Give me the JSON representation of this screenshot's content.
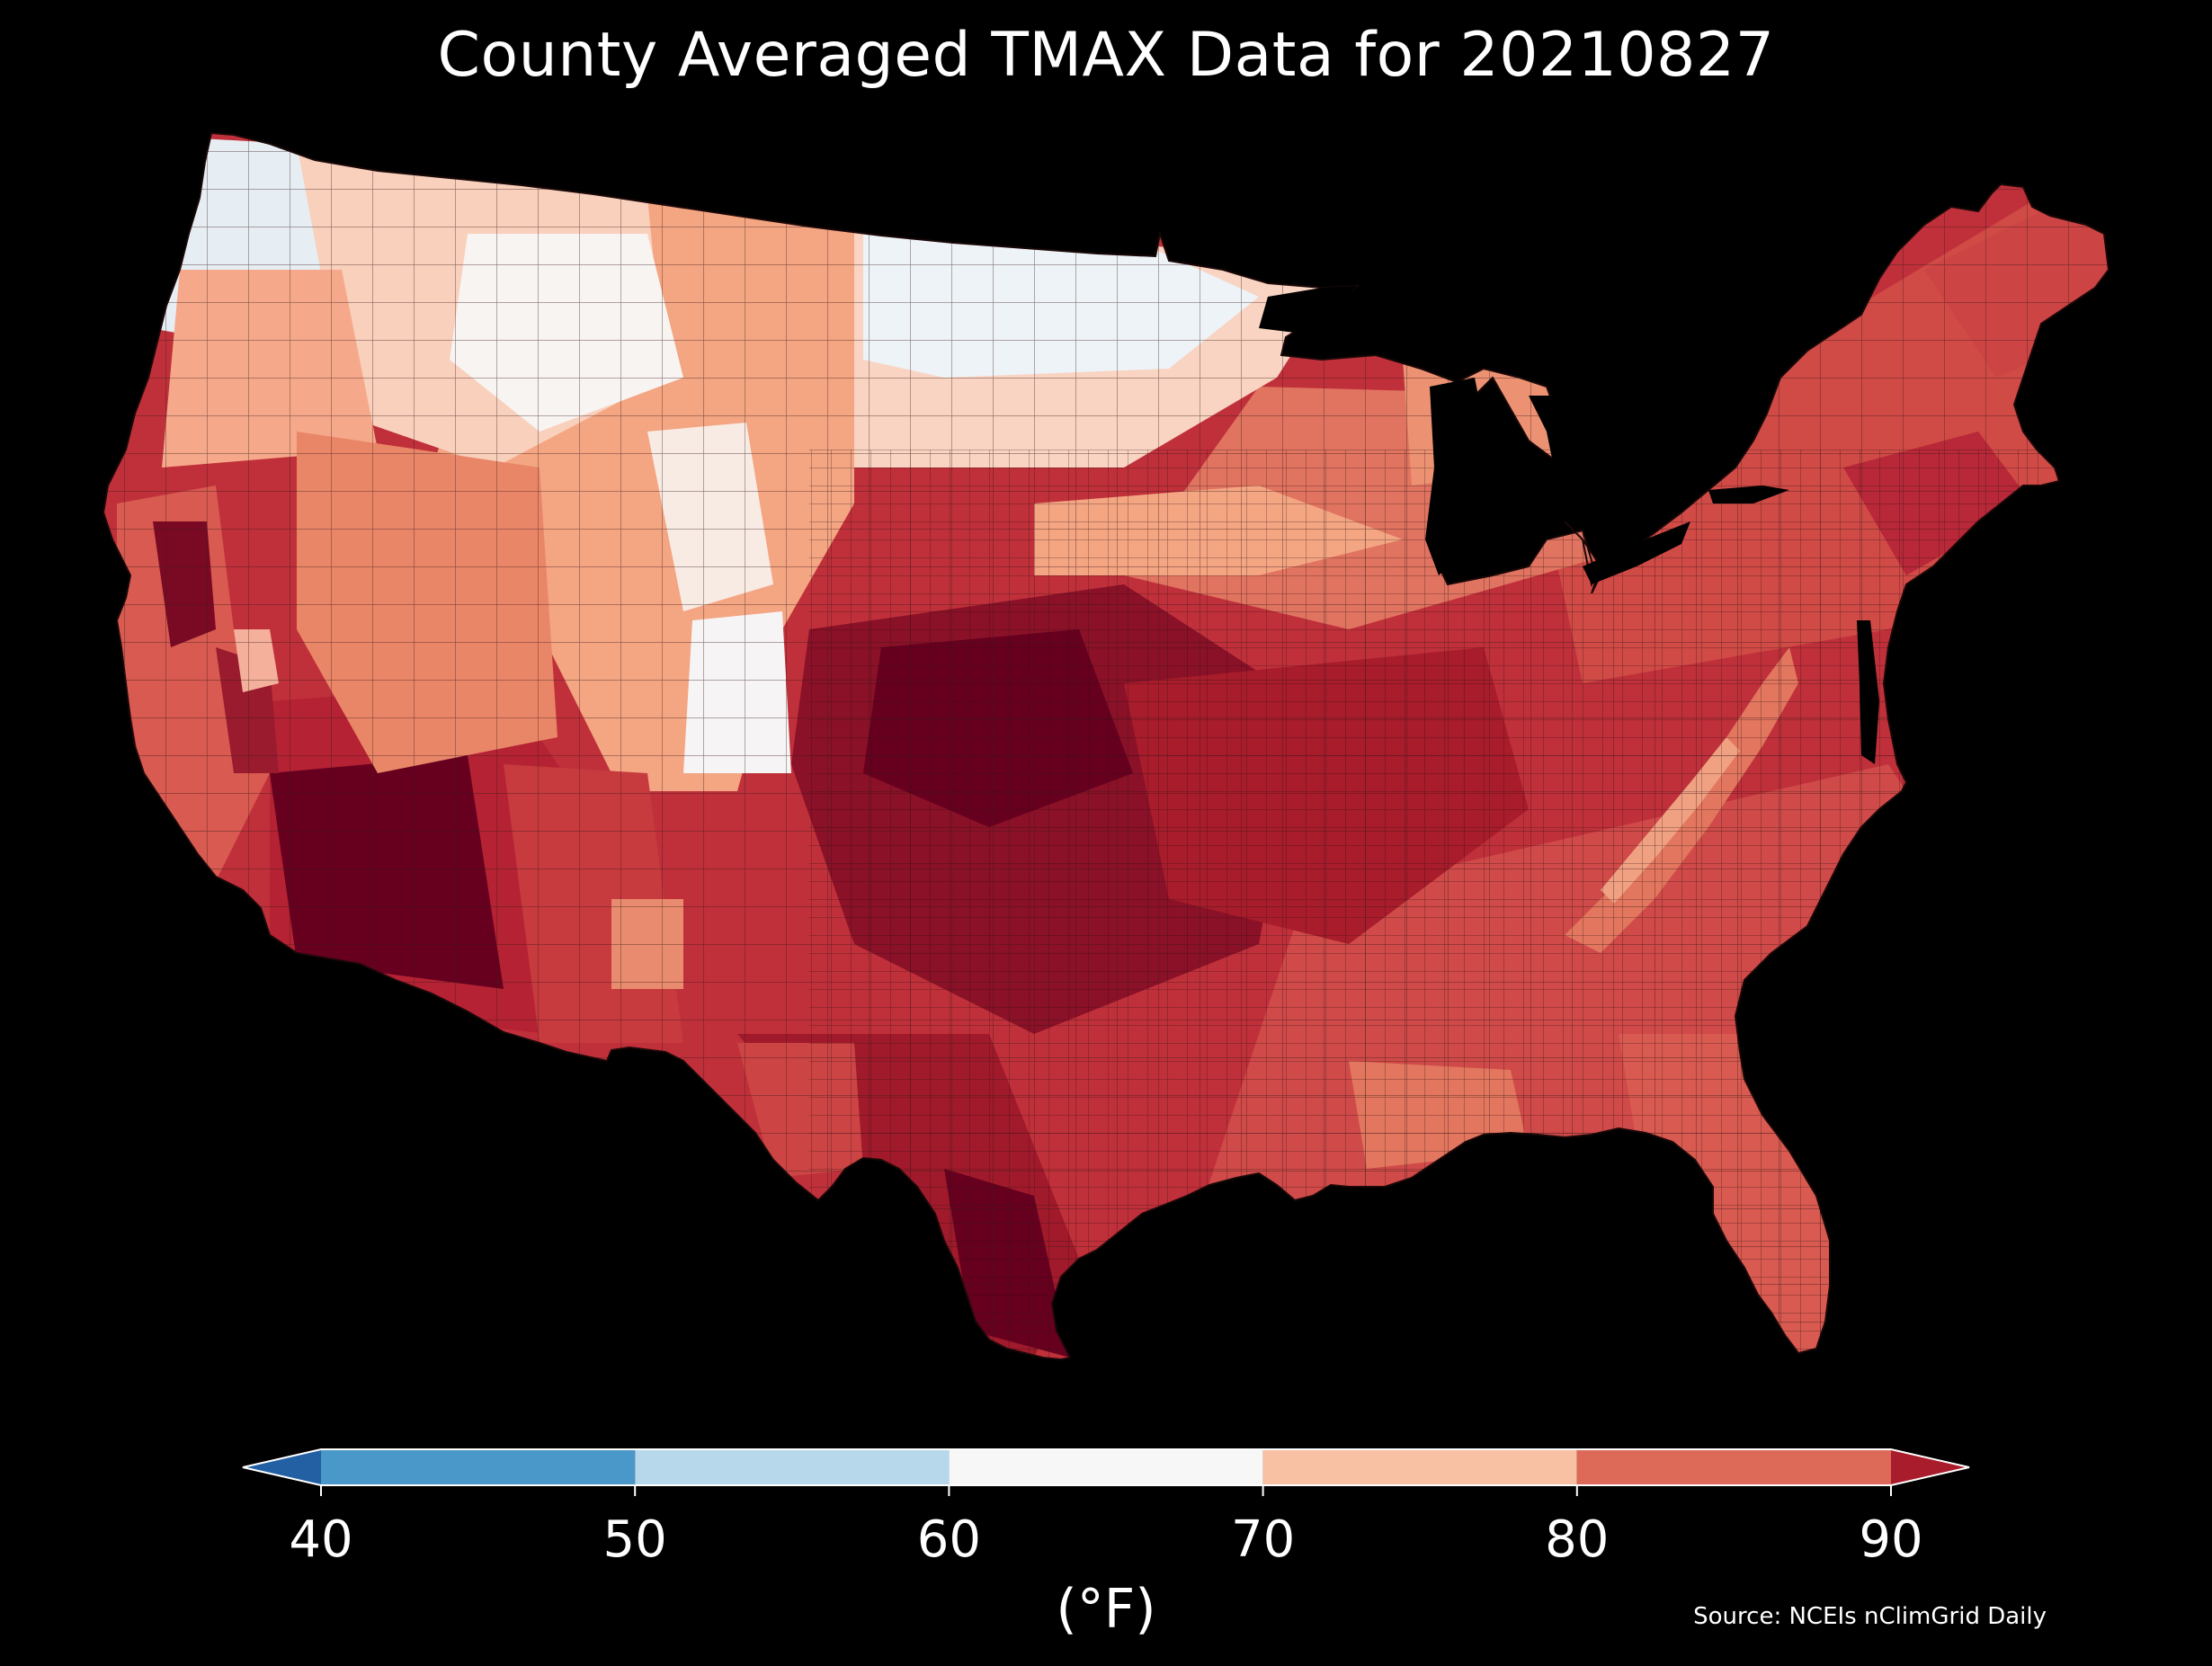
{
  "title": "County Averaged TMAX Data for 20210827",
  "colorbar": {
    "unit": "(°F)",
    "ticks": [
      "40",
      "50",
      "60",
      "70",
      "80",
      "90"
    ],
    "bins": [
      {
        "from": 40,
        "to": 50,
        "color": "#4a97c9"
      },
      {
        "from": 50,
        "to": 60,
        "color": "#b7d8ea"
      },
      {
        "from": 60,
        "to": 70,
        "color": "#f7f7f7"
      },
      {
        "from": 70,
        "to": 80,
        "color": "#f9c1a4"
      },
      {
        "from": 80,
        "to": 90,
        "color": "#dd6a58"
      }
    ],
    "under_color": "#225fa3",
    "over_color": "#a81c2b",
    "extend": "both"
  },
  "source": "Source: NCEIs nClimGrid Daily",
  "map": {
    "region": "contiguous United States, county level",
    "colors": {
      "background": "#000000",
      "hottest": "#67001f",
      "very_hot": "#9a1a2e",
      "hot": "#c0303a",
      "warm": "#dd6a58",
      "mild_warm": "#f4a582",
      "mild": "#fbd9c7",
      "neutral": "#f7f7f7",
      "cool": "#e3eef5",
      "county_border": "#3a1a1a"
    }
  }
}
